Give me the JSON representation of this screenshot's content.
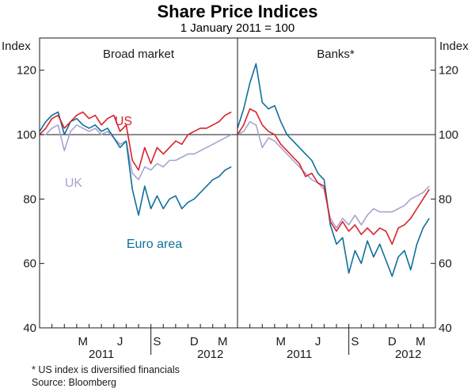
{
  "chart_data": {
    "type": "line",
    "title": "Share Price Indices",
    "subtitle": "1 January 2011 = 100",
    "ylabel": "Index",
    "ylim": [
      40,
      130
    ],
    "yticks": [
      40,
      60,
      80,
      100,
      120
    ],
    "reference_line": 100,
    "x_month_ticks": [
      "M",
      "J",
      "S",
      "D",
      "M"
    ],
    "x_year_labels": [
      "2011",
      "2012"
    ],
    "footnotes": [
      "*     US index is diversified financials",
      "Source: Bloomberg"
    ],
    "colors": {
      "US": "#d8232a",
      "UK": "#a9a2cf",
      "Euro area": "#0f6f9b"
    },
    "panels": [
      {
        "title": "Broad market",
        "series_labels": {
          "US": "US",
          "UK": "UK",
          "Euro area": "Euro area"
        },
        "series": [
          {
            "name": "US",
            "x": [
              0,
              0.5,
              1,
              1.5,
              2,
              2.5,
              3,
              3.5,
              4,
              4.5,
              5,
              5.5,
              6,
              6.5,
              7,
              7.5,
              8,
              8.5,
              9,
              9.5,
              10,
              10.5,
              11,
              11.5,
              12,
              12.5,
              13,
              13.5,
              14,
              14.5,
              15,
              15.5
            ],
            "values": [
              100,
              102,
              105,
              106,
              102,
              104,
              106,
              107,
              105,
              106,
              103,
              105,
              106,
              101,
              103,
              92,
              89,
              96,
              91,
              96,
              94,
              96,
              98,
              97,
              100,
              101,
              102,
              102,
              103,
              104,
              106,
              107
            ]
          },
          {
            "name": "UK",
            "x": [
              0,
              0.5,
              1,
              1.5,
              2,
              2.5,
              3,
              3.5,
              4,
              4.5,
              5,
              5.5,
              6,
              6.5,
              7,
              7.5,
              8,
              8.5,
              9,
              9.5,
              10,
              10.5,
              11,
              11.5,
              12,
              12.5,
              13,
              13.5,
              14,
              14.5,
              15,
              15.5
            ],
            "values": [
              100,
              100,
              102,
              103,
              95,
              101,
              103,
              102,
              101,
              102,
              100,
              101,
              99,
              97,
              98,
              88,
              86,
              90,
              89,
              91,
              90,
              92,
              92,
              93,
              94,
              94,
              95,
              96,
              97,
              98,
              99,
              100
            ]
          },
          {
            "name": "Euro area",
            "x": [
              0,
              0.5,
              1,
              1.5,
              2,
              2.5,
              3,
              3.5,
              4,
              4.5,
              5,
              5.5,
              6,
              6.5,
              7,
              7.5,
              8,
              8.5,
              9,
              9.5,
              10,
              10.5,
              11,
              11.5,
              12,
              12.5,
              13,
              13.5,
              14,
              14.5,
              15,
              15.5
            ],
            "values": [
              101,
              104,
              106,
              107,
              100,
              104,
              105,
              103,
              102,
              103,
              101,
              102,
              99,
              96,
              98,
              83,
              75,
              84,
              77,
              81,
              77,
              80,
              81,
              77,
              79,
              80,
              82,
              84,
              86,
              87,
              89,
              90
            ]
          }
        ]
      },
      {
        "title": "Banks*",
        "series": [
          {
            "name": "US",
            "x": [
              0,
              0.5,
              1,
              1.5,
              2,
              2.5,
              3,
              3.5,
              4,
              4.5,
              5,
              5.5,
              6,
              6.5,
              7,
              7.5,
              8,
              8.5,
              9,
              9.5,
              10,
              10.5,
              11,
              11.5,
              12,
              12.5,
              13,
              13.5,
              14,
              14.5,
              15,
              15.5
            ],
            "values": [
              100,
              103,
              108,
              107,
              103,
              101,
              100,
              97,
              95,
              93,
              91,
              87,
              88,
              85,
              84,
              73,
              70,
              73,
              70,
              72,
              69,
              71,
              69,
              71,
              70,
              66,
              71,
              72,
              74,
              77,
              80,
              83
            ]
          },
          {
            "name": "UK",
            "x": [
              0,
              0.5,
              1,
              1.5,
              2,
              2.5,
              3,
              3.5,
              4,
              4.5,
              5,
              5.5,
              6,
              6.5,
              7,
              7.5,
              8,
              8.5,
              9,
              9.5,
              10,
              10.5,
              11,
              11.5,
              12,
              12.5,
              13,
              13.5,
              14,
              14.5,
              15,
              15.5
            ],
            "values": [
              100,
              101,
              104,
              103,
              96,
              99,
              98,
              96,
              94,
              92,
              90,
              88,
              86,
              85,
              83,
              74,
              71,
              74,
              72,
              75,
              72,
              75,
              77,
              76,
              76,
              76,
              77,
              78,
              80,
              81,
              82,
              84
            ]
          },
          {
            "name": "Euro area",
            "x": [
              0,
              0.5,
              1,
              1.5,
              2,
              2.5,
              3,
              3.5,
              4,
              4.5,
              5,
              5.5,
              6,
              6.5,
              7,
              7.5,
              8,
              8.5,
              9,
              9.5,
              10,
              10.5,
              11,
              11.5,
              12,
              12.5,
              13,
              13.5,
              14,
              14.5,
              15,
              15.5
            ],
            "values": [
              102,
              108,
              116,
              122,
              110,
              108,
              109,
              104,
              100,
              98,
              96,
              94,
              92,
              88,
              86,
              72,
              66,
              68,
              57,
              64,
              60,
              67,
              62,
              66,
              61,
              56,
              62,
              64,
              58,
              66,
              71,
              74
            ]
          }
        ]
      }
    ]
  }
}
